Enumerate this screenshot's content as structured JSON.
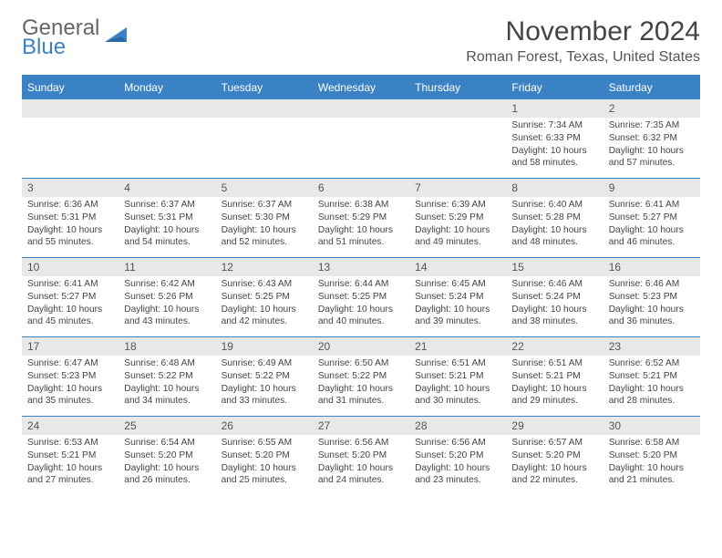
{
  "logo": {
    "line1": "General",
    "line2": "Blue",
    "shape_color": "#3b82c4"
  },
  "header": {
    "month_title": "November 2024",
    "location": "Roman Forest, Texas, United States"
  },
  "colors": {
    "accent": "#3b82c4",
    "day_num_bg": "#e8e8e8",
    "text": "#444444"
  },
  "day_names": [
    "Sunday",
    "Monday",
    "Tuesday",
    "Wednesday",
    "Thursday",
    "Friday",
    "Saturday"
  ],
  "weeks": [
    [
      {
        "n": "",
        "sr": "",
        "ss": "",
        "d1": "",
        "d2": ""
      },
      {
        "n": "",
        "sr": "",
        "ss": "",
        "d1": "",
        "d2": ""
      },
      {
        "n": "",
        "sr": "",
        "ss": "",
        "d1": "",
        "d2": ""
      },
      {
        "n": "",
        "sr": "",
        "ss": "",
        "d1": "",
        "d2": ""
      },
      {
        "n": "",
        "sr": "",
        "ss": "",
        "d1": "",
        "d2": ""
      },
      {
        "n": "1",
        "sr": "Sunrise: 7:34 AM",
        "ss": "Sunset: 6:33 PM",
        "d1": "Daylight: 10 hours",
        "d2": "and 58 minutes."
      },
      {
        "n": "2",
        "sr": "Sunrise: 7:35 AM",
        "ss": "Sunset: 6:32 PM",
        "d1": "Daylight: 10 hours",
        "d2": "and 57 minutes."
      }
    ],
    [
      {
        "n": "3",
        "sr": "Sunrise: 6:36 AM",
        "ss": "Sunset: 5:31 PM",
        "d1": "Daylight: 10 hours",
        "d2": "and 55 minutes."
      },
      {
        "n": "4",
        "sr": "Sunrise: 6:37 AM",
        "ss": "Sunset: 5:31 PM",
        "d1": "Daylight: 10 hours",
        "d2": "and 54 minutes."
      },
      {
        "n": "5",
        "sr": "Sunrise: 6:37 AM",
        "ss": "Sunset: 5:30 PM",
        "d1": "Daylight: 10 hours",
        "d2": "and 52 minutes."
      },
      {
        "n": "6",
        "sr": "Sunrise: 6:38 AM",
        "ss": "Sunset: 5:29 PM",
        "d1": "Daylight: 10 hours",
        "d2": "and 51 minutes."
      },
      {
        "n": "7",
        "sr": "Sunrise: 6:39 AM",
        "ss": "Sunset: 5:29 PM",
        "d1": "Daylight: 10 hours",
        "d2": "and 49 minutes."
      },
      {
        "n": "8",
        "sr": "Sunrise: 6:40 AM",
        "ss": "Sunset: 5:28 PM",
        "d1": "Daylight: 10 hours",
        "d2": "and 48 minutes."
      },
      {
        "n": "9",
        "sr": "Sunrise: 6:41 AM",
        "ss": "Sunset: 5:27 PM",
        "d1": "Daylight: 10 hours",
        "d2": "and 46 minutes."
      }
    ],
    [
      {
        "n": "10",
        "sr": "Sunrise: 6:41 AM",
        "ss": "Sunset: 5:27 PM",
        "d1": "Daylight: 10 hours",
        "d2": "and 45 minutes."
      },
      {
        "n": "11",
        "sr": "Sunrise: 6:42 AM",
        "ss": "Sunset: 5:26 PM",
        "d1": "Daylight: 10 hours",
        "d2": "and 43 minutes."
      },
      {
        "n": "12",
        "sr": "Sunrise: 6:43 AM",
        "ss": "Sunset: 5:25 PM",
        "d1": "Daylight: 10 hours",
        "d2": "and 42 minutes."
      },
      {
        "n": "13",
        "sr": "Sunrise: 6:44 AM",
        "ss": "Sunset: 5:25 PM",
        "d1": "Daylight: 10 hours",
        "d2": "and 40 minutes."
      },
      {
        "n": "14",
        "sr": "Sunrise: 6:45 AM",
        "ss": "Sunset: 5:24 PM",
        "d1": "Daylight: 10 hours",
        "d2": "and 39 minutes."
      },
      {
        "n": "15",
        "sr": "Sunrise: 6:46 AM",
        "ss": "Sunset: 5:24 PM",
        "d1": "Daylight: 10 hours",
        "d2": "and 38 minutes."
      },
      {
        "n": "16",
        "sr": "Sunrise: 6:46 AM",
        "ss": "Sunset: 5:23 PM",
        "d1": "Daylight: 10 hours",
        "d2": "and 36 minutes."
      }
    ],
    [
      {
        "n": "17",
        "sr": "Sunrise: 6:47 AM",
        "ss": "Sunset: 5:23 PM",
        "d1": "Daylight: 10 hours",
        "d2": "and 35 minutes."
      },
      {
        "n": "18",
        "sr": "Sunrise: 6:48 AM",
        "ss": "Sunset: 5:22 PM",
        "d1": "Daylight: 10 hours",
        "d2": "and 34 minutes."
      },
      {
        "n": "19",
        "sr": "Sunrise: 6:49 AM",
        "ss": "Sunset: 5:22 PM",
        "d1": "Daylight: 10 hours",
        "d2": "and 33 minutes."
      },
      {
        "n": "20",
        "sr": "Sunrise: 6:50 AM",
        "ss": "Sunset: 5:22 PM",
        "d1": "Daylight: 10 hours",
        "d2": "and 31 minutes."
      },
      {
        "n": "21",
        "sr": "Sunrise: 6:51 AM",
        "ss": "Sunset: 5:21 PM",
        "d1": "Daylight: 10 hours",
        "d2": "and 30 minutes."
      },
      {
        "n": "22",
        "sr": "Sunrise: 6:51 AM",
        "ss": "Sunset: 5:21 PM",
        "d1": "Daylight: 10 hours",
        "d2": "and 29 minutes."
      },
      {
        "n": "23",
        "sr": "Sunrise: 6:52 AM",
        "ss": "Sunset: 5:21 PM",
        "d1": "Daylight: 10 hours",
        "d2": "and 28 minutes."
      }
    ],
    [
      {
        "n": "24",
        "sr": "Sunrise: 6:53 AM",
        "ss": "Sunset: 5:21 PM",
        "d1": "Daylight: 10 hours",
        "d2": "and 27 minutes."
      },
      {
        "n": "25",
        "sr": "Sunrise: 6:54 AM",
        "ss": "Sunset: 5:20 PM",
        "d1": "Daylight: 10 hours",
        "d2": "and 26 minutes."
      },
      {
        "n": "26",
        "sr": "Sunrise: 6:55 AM",
        "ss": "Sunset: 5:20 PM",
        "d1": "Daylight: 10 hours",
        "d2": "and 25 minutes."
      },
      {
        "n": "27",
        "sr": "Sunrise: 6:56 AM",
        "ss": "Sunset: 5:20 PM",
        "d1": "Daylight: 10 hours",
        "d2": "and 24 minutes."
      },
      {
        "n": "28",
        "sr": "Sunrise: 6:56 AM",
        "ss": "Sunset: 5:20 PM",
        "d1": "Daylight: 10 hours",
        "d2": "and 23 minutes."
      },
      {
        "n": "29",
        "sr": "Sunrise: 6:57 AM",
        "ss": "Sunset: 5:20 PM",
        "d1": "Daylight: 10 hours",
        "d2": "and 22 minutes."
      },
      {
        "n": "30",
        "sr": "Sunrise: 6:58 AM",
        "ss": "Sunset: 5:20 PM",
        "d1": "Daylight: 10 hours",
        "d2": "and 21 minutes."
      }
    ]
  ]
}
